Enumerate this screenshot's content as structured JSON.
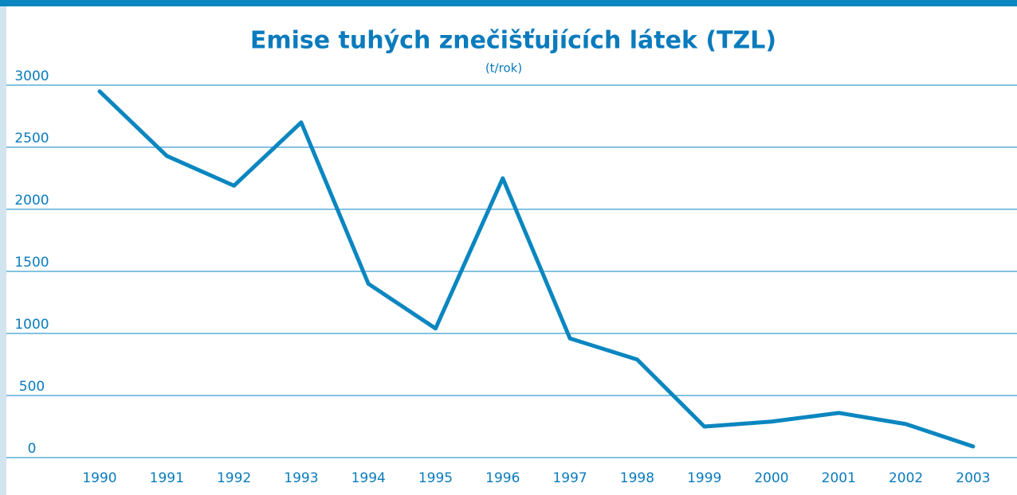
{
  "chart_data": {
    "type": "line",
    "title": "Emise tuhých znečišťujících látek (TZL)",
    "subtitle": "(t/rok)",
    "categories": [
      "1990",
      "1991",
      "1992",
      "1993",
      "1994",
      "1995",
      "1996",
      "1997",
      "1998",
      "1999",
      "2000",
      "2001",
      "2002",
      "2003"
    ],
    "values": [
      2950,
      2430,
      2190,
      2700,
      1400,
      1040,
      2250,
      960,
      790,
      250,
      290,
      360,
      270,
      90
    ],
    "color": "#0a86c0",
    "ylim": [
      0,
      3000
    ],
    "yticks": [
      0,
      500,
      1000,
      1500,
      2000,
      2500,
      3000
    ],
    "grid": true
  }
}
